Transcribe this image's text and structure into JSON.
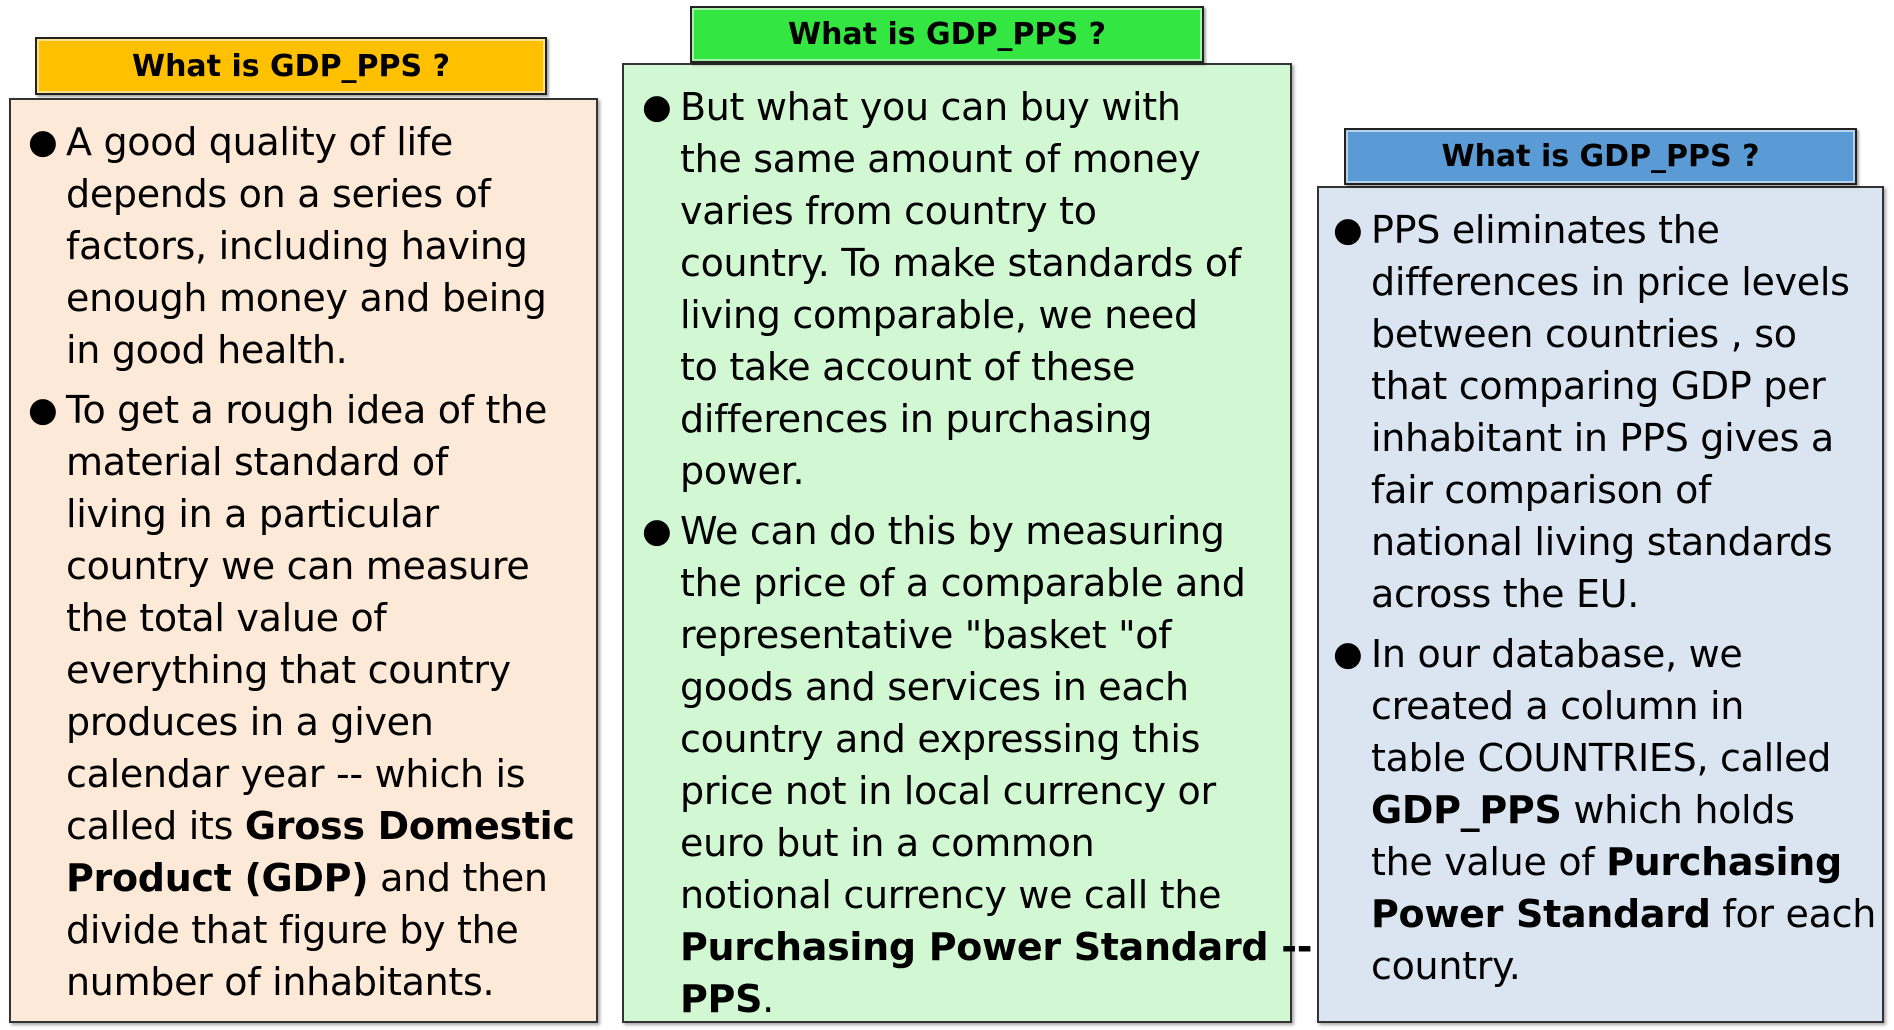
{
  "panels": [
    {
      "title": "What is GDP_PPS ?",
      "bullets": [
        {
          "lines": [
            "A good quality of life",
            "depends on a series of",
            "factors, including having",
            "enough money and being",
            "in good health."
          ]
        },
        {
          "lines": [
            "To get a rough idea of the",
            "material standard of",
            "living in a particular",
            "country we can measure",
            "the total value of",
            "everything that country",
            "produces in a given",
            "calendar year -- which is",
            "called its ",
            "Gross Domestic",
            "Product (GDP)",
            " and then",
            "divide that figure by the",
            "number of inhabitants."
          ]
        }
      ]
    },
    {
      "title": "What is GDP_PPS ?",
      "bullets": [
        {
          "lines": [
            "But what you can buy with",
            "the same amount of money",
            "varies from country to",
            "country. To make standards of",
            "living comparable,  we need",
            "to take account of these",
            "differences in purchasing",
            "power."
          ]
        },
        {
          "lines": [
            "We can do this by measuring",
            "the price of a comparable and",
            "representative \"basket \"of",
            "goods and services in each",
            "country and expressing this",
            "price not in local currency or",
            "euro but in a common",
            "notional currency we call the",
            "Purchasing Power Standard --",
            "PPS",
            "."
          ]
        }
      ]
    },
    {
      "title": "What is GDP_PPS ?",
      "bullets": [
        {
          "lines": [
            "PPS eliminates the",
            "differences in price levels",
            "between countries , so",
            "that comparing GDP per",
            "inhabitant in PPS gives a",
            "fair comparison of",
            "national living standards",
            "across the EU."
          ]
        },
        {
          "lines": [
            "In our database, we",
            "created a column in",
            "table COUNTRIES, called",
            "GDP_PPS",
            " which holds",
            "the value of ",
            "Purchasing",
            "Power Standard",
            " for each",
            "country."
          ]
        }
      ]
    }
  ],
  "colors": {
    "tab_orange": "#ffc000",
    "panel_peach": "#fde9d7",
    "tab_green": "#33e642",
    "panel_mint": "#d2f7d3",
    "tab_blue": "#5b9bd5",
    "panel_lightblue": "#dbe5f1"
  }
}
